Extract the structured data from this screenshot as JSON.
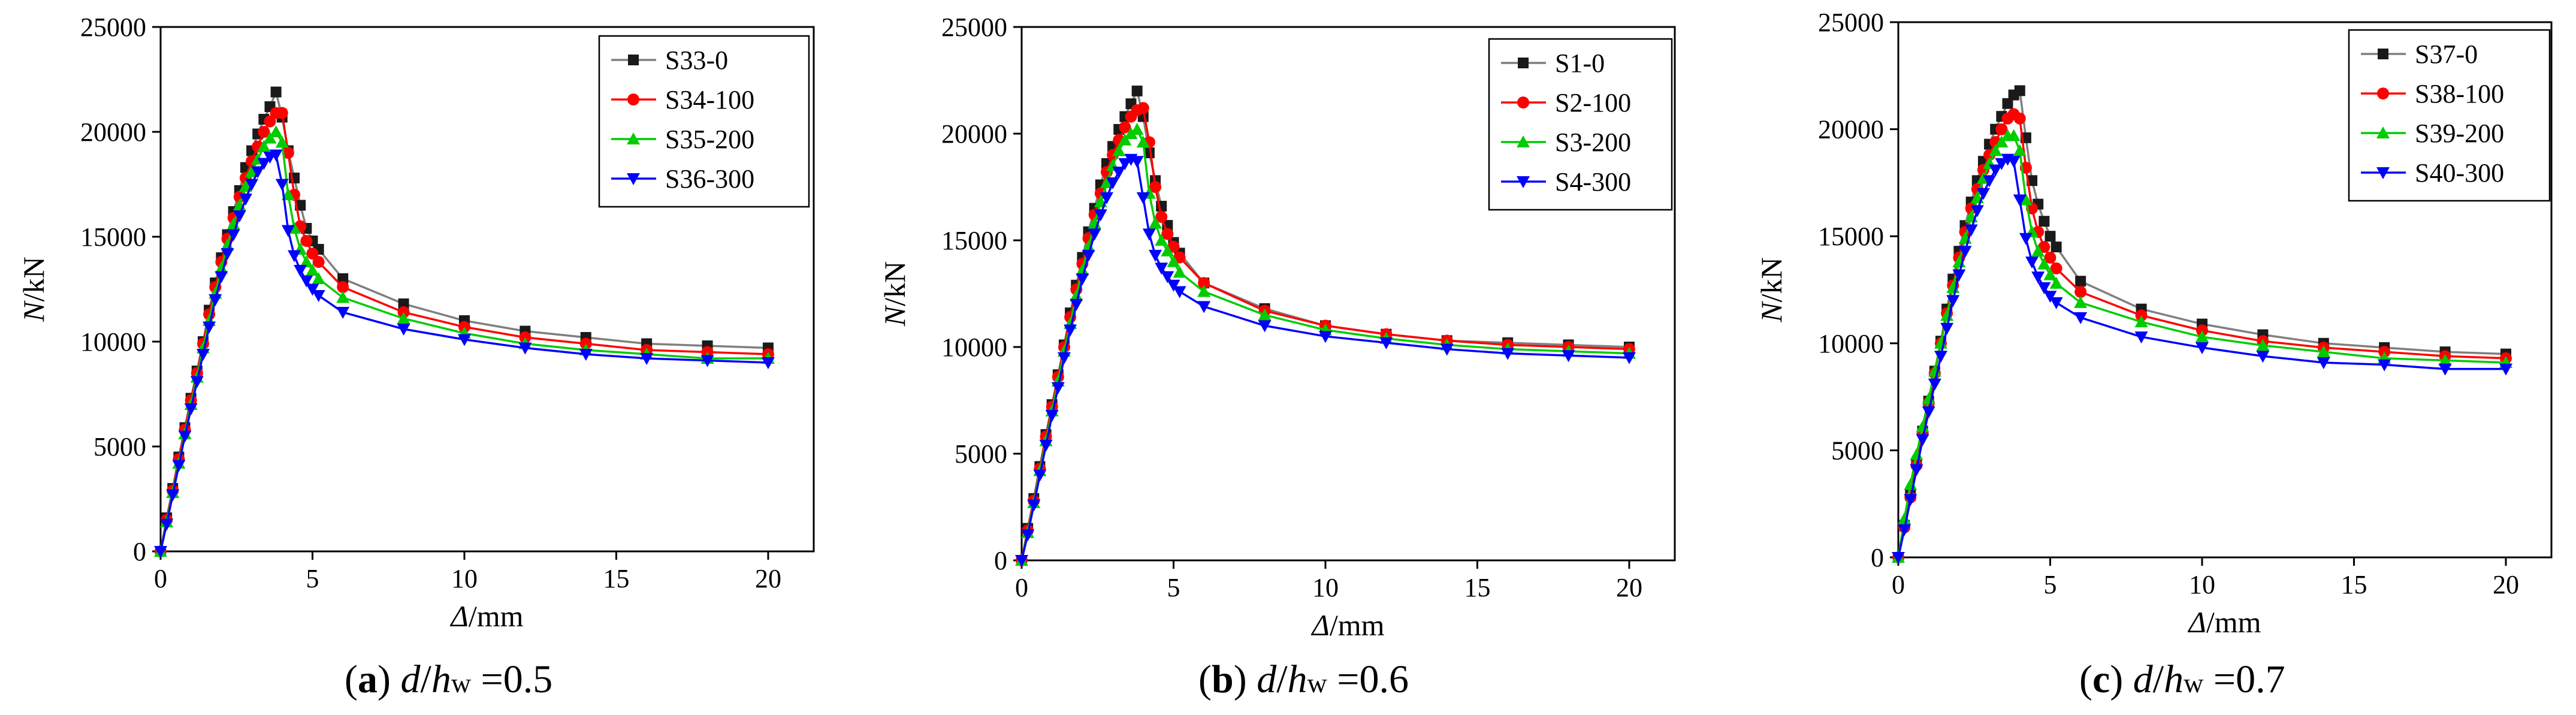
{
  "figure": {
    "panels": [
      {
        "caption": {
          "letter": "a",
          "var1": "d",
          "slash": "/",
          "var2": "h",
          "sub": "w",
          "eq": " =",
          "value": "0.5"
        },
        "legend_position": "top-right"
      },
      {
        "caption": {
          "letter": "b",
          "var1": "d",
          "slash": "/",
          "var2": "h",
          "sub": "w",
          "eq": " =",
          "value": "0.6"
        },
        "legend_position": "top-right"
      },
      {
        "caption": {
          "letter": "c",
          "var1": "d",
          "slash": "/",
          "var2": "h",
          "sub": "w",
          "eq": " =",
          "value": "0.7"
        },
        "legend_position": "top-right"
      }
    ]
  },
  "colors": {
    "series": [
      "#1a1a1a",
      "#ff0000",
      "#00cc00",
      "#0000ff"
    ],
    "lines": [
      "#7f7f7f",
      "#ff0000",
      "#00cc00",
      "#0000ff"
    ],
    "markers": [
      "square",
      "circle",
      "triangle-up",
      "triangle-down"
    ]
  },
  "chart_data": [
    {
      "type": "line",
      "title": "(a) d/hw =0.5",
      "xlabel": {
        "sym": "Δ",
        "unit": "/mm"
      },
      "ylabel": {
        "sym": "N",
        "unit": "/kN"
      },
      "xlim": [
        0,
        21.5
      ],
      "ylim": [
        0,
        25000
      ],
      "xticks": [
        0,
        5,
        10,
        15,
        20
      ],
      "yticks": [
        0,
        5000,
        10000,
        15000,
        20000,
        25000
      ],
      "series": [
        {
          "name": "S33-0",
          "x": [
            0,
            0.2,
            0.4,
            0.6,
            0.8,
            1.0,
            1.2,
            1.4,
            1.6,
            1.8,
            2.0,
            2.2,
            2.4,
            2.6,
            2.8,
            3.0,
            3.2,
            3.4,
            3.6,
            3.8,
            4.0,
            4.2,
            4.4,
            4.6,
            4.8,
            5.0,
            5.2,
            6,
            8,
            10,
            12,
            14,
            16,
            18,
            20
          ],
          "y": [
            0,
            1600,
            3000,
            4500,
            5900,
            7300,
            8600,
            10000,
            11500,
            12800,
            14000,
            15100,
            16200,
            17200,
            18300,
            19100,
            19900,
            20600,
            21200,
            21900,
            20700,
            19100,
            17800,
            16500,
            15400,
            14800,
            14400,
            13000,
            11800,
            11000,
            10500,
            10200,
            9900,
            9800,
            9700
          ]
        },
        {
          "name": "S34-100",
          "x": [
            0,
            0.2,
            0.4,
            0.6,
            0.8,
            1.0,
            1.2,
            1.4,
            1.6,
            1.8,
            2.0,
            2.2,
            2.4,
            2.6,
            2.8,
            3.0,
            3.2,
            3.4,
            3.6,
            3.8,
            4.0,
            4.2,
            4.4,
            4.6,
            4.8,
            5.0,
            5.2,
            6,
            8,
            10,
            12,
            14,
            16,
            18,
            20
          ],
          "y": [
            0,
            1500,
            2900,
            4400,
            5800,
            7200,
            8500,
            9900,
            11300,
            12600,
            13800,
            14900,
            15900,
            16900,
            17800,
            18600,
            19300,
            20000,
            20500,
            20900,
            20900,
            19000,
            17000,
            15500,
            14800,
            14200,
            13800,
            12600,
            11400,
            10700,
            10200,
            9900,
            9600,
            9500,
            9400
          ]
        },
        {
          "name": "S35-200",
          "x": [
            0,
            0.2,
            0.4,
            0.6,
            0.8,
            1.0,
            1.2,
            1.4,
            1.6,
            1.8,
            2.0,
            2.2,
            2.4,
            2.6,
            2.8,
            3.0,
            3.2,
            3.4,
            3.6,
            3.8,
            4.0,
            4.2,
            4.4,
            4.6,
            4.8,
            5.0,
            5.2,
            6,
            8,
            10,
            12,
            14,
            16,
            18,
            20
          ],
          "y": [
            0,
            1400,
            2800,
            4200,
            5600,
            7000,
            8300,
            9700,
            11000,
            12300,
            13500,
            14600,
            15600,
            16500,
            17400,
            18100,
            18700,
            19300,
            19700,
            20000,
            19500,
            17000,
            15400,
            14400,
            13800,
            13400,
            13000,
            12100,
            11100,
            10400,
            9900,
            9600,
            9400,
            9200,
            9200
          ]
        },
        {
          "name": "S36-300",
          "x": [
            0,
            0.2,
            0.4,
            0.6,
            0.8,
            1.0,
            1.2,
            1.4,
            1.6,
            1.8,
            2.0,
            2.2,
            2.4,
            2.6,
            2.8,
            3.0,
            3.2,
            3.4,
            3.6,
            3.8,
            4.0,
            4.2,
            4.4,
            4.6,
            4.8,
            5.0,
            5.2,
            6,
            8,
            10,
            12,
            14,
            16,
            18,
            20
          ],
          "y": [
            0,
            1300,
            2700,
            4100,
            5500,
            6800,
            8100,
            9400,
            10700,
            12000,
            13100,
            14200,
            15100,
            16000,
            16800,
            17500,
            18100,
            18500,
            18800,
            18900,
            17500,
            15300,
            14100,
            13400,
            12900,
            12500,
            12200,
            11400,
            10600,
            10100,
            9700,
            9400,
            9200,
            9100,
            9000
          ]
        }
      ]
    },
    {
      "type": "line",
      "title": "(b) d/hw =0.6",
      "xlabel": {
        "sym": "Δ",
        "unit": "/mm"
      },
      "ylabel": {
        "sym": "N",
        "unit": "/kN"
      },
      "xlim": [
        0,
        21.5
      ],
      "ylim": [
        0,
        25000
      ],
      "xticks": [
        0,
        5,
        10,
        15,
        20
      ],
      "yticks": [
        0,
        5000,
        10000,
        15000,
        20000,
        25000
      ],
      "series": [
        {
          "name": "S1-0",
          "x": [
            0,
            0.2,
            0.4,
            0.6,
            0.8,
            1.0,
            1.2,
            1.4,
            1.6,
            1.8,
            2.0,
            2.2,
            2.4,
            2.6,
            2.8,
            3.0,
            3.2,
            3.4,
            3.6,
            3.8,
            4.0,
            4.2,
            4.4,
            4.6,
            4.8,
            5.0,
            5.2,
            6,
            8,
            10,
            12,
            14,
            16,
            18,
            20
          ],
          "y": [
            0,
            1500,
            2900,
            4400,
            5900,
            7300,
            8700,
            10100,
            11600,
            12900,
            14200,
            15400,
            16500,
            17600,
            18600,
            19400,
            20200,
            20800,
            21400,
            22000,
            20800,
            19100,
            17800,
            16600,
            15700,
            14900,
            14400,
            13000,
            11800,
            11000,
            10600,
            10300,
            10200,
            10100,
            10000
          ]
        },
        {
          "name": "S2-100",
          "x": [
            0,
            0.2,
            0.4,
            0.6,
            0.8,
            1.0,
            1.2,
            1.4,
            1.6,
            1.8,
            2.0,
            2.2,
            2.4,
            2.6,
            2.8,
            3.0,
            3.2,
            3.4,
            3.6,
            3.8,
            4.0,
            4.2,
            4.4,
            4.6,
            4.8,
            5.0,
            5.2,
            6,
            8,
            10,
            12,
            14,
            16,
            18,
            20
          ],
          "y": [
            0,
            1400,
            2800,
            4300,
            5800,
            7200,
            8600,
            10000,
            11400,
            12700,
            13900,
            15100,
            16200,
            17200,
            18200,
            19000,
            19700,
            20300,
            20800,
            21100,
            21200,
            19600,
            17500,
            16100,
            15300,
            14700,
            14200,
            13000,
            11700,
            11000,
            10600,
            10300,
            10100,
            10000,
            9900
          ]
        },
        {
          "name": "S3-200",
          "x": [
            0,
            0.2,
            0.4,
            0.6,
            0.8,
            1.0,
            1.2,
            1.4,
            1.6,
            1.8,
            2.0,
            2.2,
            2.4,
            2.6,
            2.8,
            3.0,
            3.2,
            3.4,
            3.6,
            3.8,
            4.0,
            4.2,
            4.4,
            4.6,
            4.8,
            5.0,
            5.2,
            6,
            8,
            10,
            12,
            14,
            16,
            18,
            20
          ],
          "y": [
            0,
            1300,
            2700,
            4200,
            5600,
            7000,
            8400,
            9800,
            11100,
            12400,
            13600,
            14700,
            15800,
            16800,
            17700,
            18500,
            19200,
            19700,
            20000,
            20200,
            19600,
            17200,
            15800,
            15000,
            14500,
            14000,
            13500,
            12600,
            11500,
            10800,
            10400,
            10100,
            9900,
            9800,
            9700
          ]
        },
        {
          "name": "S4-300",
          "x": [
            0,
            0.2,
            0.4,
            0.6,
            0.8,
            1.0,
            1.2,
            1.4,
            1.6,
            1.8,
            2.0,
            2.2,
            2.4,
            2.6,
            2.8,
            3.0,
            3.2,
            3.4,
            3.6,
            3.8,
            4.0,
            4.2,
            4.4,
            4.6,
            4.8,
            5.0,
            5.2,
            6,
            8,
            10,
            12,
            14,
            16,
            18,
            20
          ],
          "y": [
            0,
            1200,
            2600,
            4000,
            5400,
            6800,
            8100,
            9500,
            10800,
            12000,
            13200,
            14300,
            15300,
            16200,
            17000,
            17700,
            18200,
            18600,
            18800,
            18700,
            17000,
            15300,
            14300,
            13700,
            13300,
            12900,
            12600,
            11900,
            11000,
            10500,
            10200,
            9900,
            9700,
            9600,
            9500
          ]
        }
      ]
    },
    {
      "type": "line",
      "title": "(c) d/hw =0.7",
      "xlabel": {
        "sym": "Δ",
        "unit": "/mm"
      },
      "ylabel": {
        "sym": "N",
        "unit": "/kN"
      },
      "xlim": [
        0,
        21.5
      ],
      "ylim": [
        0,
        25000
      ],
      "xticks": [
        0,
        5,
        10,
        15,
        20
      ],
      "yticks": [
        0,
        5000,
        10000,
        15000,
        20000,
        25000
      ],
      "series": [
        {
          "name": "S37-0",
          "x": [
            0,
            0.2,
            0.4,
            0.6,
            0.8,
            1.0,
            1.2,
            1.4,
            1.6,
            1.8,
            2.0,
            2.2,
            2.4,
            2.6,
            2.8,
            3.0,
            3.2,
            3.4,
            3.6,
            3.8,
            4.0,
            4.2,
            4.4,
            4.6,
            4.8,
            5.0,
            5.2,
            6,
            8,
            10,
            12,
            14,
            16,
            18,
            20
          ],
          "y": [
            0,
            1500,
            2900,
            4400,
            5900,
            7300,
            8700,
            10100,
            11600,
            13000,
            14300,
            15500,
            16600,
            17600,
            18500,
            19300,
            20000,
            20600,
            21200,
            21600,
            21800,
            19600,
            17600,
            16500,
            15700,
            15000,
            14500,
            12900,
            11600,
            10900,
            10400,
            10000,
            9800,
            9600,
            9500
          ]
        },
        {
          "name": "S38-100",
          "x": [
            0,
            0.2,
            0.4,
            0.6,
            0.8,
            1.0,
            1.2,
            1.4,
            1.6,
            1.8,
            2.0,
            2.2,
            2.4,
            2.6,
            2.8,
            3.0,
            3.2,
            3.4,
            3.6,
            3.8,
            4.0,
            4.2,
            4.4,
            4.6,
            4.8,
            5.0,
            5.2,
            6,
            8,
            10,
            12,
            14,
            16,
            18,
            20
          ],
          "y": [
            0,
            1400,
            2800,
            4300,
            5800,
            7200,
            8600,
            10000,
            11400,
            12700,
            14000,
            15200,
            16300,
            17200,
            18100,
            18800,
            19400,
            20000,
            20500,
            20700,
            20500,
            18200,
            16300,
            15200,
            14500,
            14000,
            13500,
            12400,
            11300,
            10600,
            10100,
            9800,
            9600,
            9400,
            9300
          ]
        },
        {
          "name": "S39-200",
          "x": [
            0,
            0.2,
            0.4,
            0.6,
            0.8,
            1.0,
            1.2,
            1.4,
            1.6,
            1.8,
            2.0,
            2.2,
            2.4,
            2.6,
            2.8,
            3.0,
            3.2,
            3.4,
            3.6,
            3.8,
            4.0,
            4.2,
            4.4,
            4.6,
            4.8,
            5.0,
            5.2,
            6,
            8,
            10,
            12,
            14,
            16,
            18,
            20
          ],
          "y": [
            0,
            1800,
            3400,
            4800,
            6100,
            7400,
            8700,
            10000,
            11300,
            12600,
            13800,
            14900,
            15900,
            16800,
            17700,
            18400,
            19000,
            19400,
            19700,
            19700,
            19000,
            16700,
            15200,
            14300,
            13700,
            13200,
            12800,
            11900,
            11000,
            10300,
            9900,
            9600,
            9300,
            9200,
            9100
          ]
        },
        {
          "name": "S40-300",
          "x": [
            0,
            0.2,
            0.4,
            0.6,
            0.8,
            1.0,
            1.2,
            1.4,
            1.6,
            1.8,
            2.0,
            2.2,
            2.4,
            2.6,
            2.8,
            3.0,
            3.2,
            3.4,
            3.6,
            3.8,
            4.0,
            4.2,
            4.4,
            4.6,
            4.8,
            5.0,
            5.2,
            6,
            8,
            10,
            12,
            14,
            16,
            18,
            20
          ],
          "y": [
            0,
            1300,
            2700,
            4100,
            5500,
            6800,
            8100,
            9400,
            10700,
            12000,
            13200,
            14300,
            15300,
            16200,
            17000,
            17600,
            18100,
            18400,
            18600,
            18500,
            16700,
            14900,
            13800,
            13100,
            12600,
            12200,
            11900,
            11200,
            10300,
            9800,
            9400,
            9100,
            9000,
            8800,
            8800
          ]
        }
      ]
    }
  ]
}
